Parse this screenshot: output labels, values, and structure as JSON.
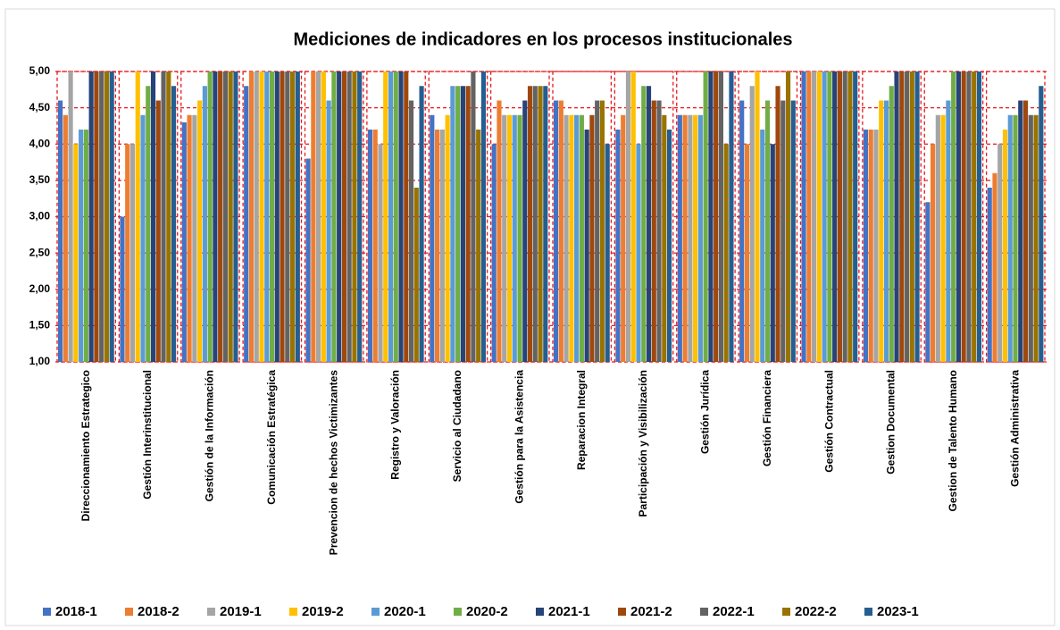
{
  "chart_data": {
    "type": "bar",
    "title": "Mediciones de indicadores en los procesos institucionales",
    "categories": [
      "Direccionamiento  Estrategico",
      "Gestión Interinstitucional",
      "Gestión de la Información",
      "Comunicación Estratégica",
      "Prevencion de hechos Victimizantes",
      "Registro y Valoración",
      "Servicio al Ciudadano",
      "Gestión para la Asistencia",
      "Reparacion Integral",
      "Participación y Visibilización",
      "Gestión Jurídica",
      "Gestión Financiera",
      "Gestión Contractual",
      "Gestion Documental",
      "Gestion de Talento Humano",
      "Gestión Administrativa"
    ],
    "series": [
      {
        "name": "2018-1",
        "color": "#4472c4",
        "values": [
          4.6,
          3.0,
          4.3,
          4.8,
          3.8,
          4.2,
          4.4,
          4.0,
          4.6,
          4.2,
          4.4,
          4.6,
          5,
          4.2,
          3.2,
          3.4
        ]
      },
      {
        "name": "2018-2",
        "color": "#ed7d31",
        "values": [
          4.4,
          4.0,
          4.4,
          5,
          5,
          4.2,
          4.2,
          4.6,
          4.6,
          4.4,
          4.4,
          4.0,
          5,
          4.2,
          4.0,
          3.6
        ]
      },
      {
        "name": "2019-1",
        "color": "#a5a5a5",
        "values": [
          5,
          4.0,
          4.4,
          5,
          5,
          4.0,
          4.2,
          4.4,
          4.4,
          5,
          4.4,
          4.8,
          5,
          4.2,
          4.4,
          4.0
        ]
      },
      {
        "name": "2019-2",
        "color": "#ffc000",
        "values": [
          4.0,
          5,
          4.6,
          5,
          5,
          5,
          4.4,
          4.4,
          4.4,
          5,
          4.4,
          5,
          5,
          4.6,
          4.4,
          4.2
        ]
      },
      {
        "name": "2020-1",
        "color": "#5b9bd5",
        "values": [
          4.2,
          4.4,
          4.8,
          5,
          4.6,
          5,
          4.8,
          4.4,
          4.4,
          4.0,
          4.4,
          4.2,
          5,
          4.6,
          4.6,
          4.4
        ]
      },
      {
        "name": "2020-2",
        "color": "#70ad47",
        "values": [
          4.2,
          4.8,
          5,
          5,
          5,
          5,
          4.8,
          4.4,
          4.4,
          4.8,
          5,
          4.6,
          5,
          4.8,
          5,
          4.4
        ]
      },
      {
        "name": "2021-1",
        "color": "#264478",
        "values": [
          5,
          5,
          5,
          5,
          5,
          5,
          4.8,
          4.6,
          4.2,
          4.8,
          5,
          4.0,
          5,
          5,
          5,
          4.6
        ]
      },
      {
        "name": "2021-2",
        "color": "#9e480e",
        "values": [
          5,
          4.6,
          5,
          5,
          5,
          5,
          4.8,
          4.8,
          4.4,
          4.6,
          5,
          4.8,
          5,
          5,
          5,
          4.6
        ]
      },
      {
        "name": "2022-1",
        "color": "#636363",
        "values": [
          5,
          5,
          5,
          5,
          5,
          4.6,
          5,
          4.8,
          4.6,
          4.6,
          5,
          4.6,
          5,
          5,
          5,
          4.4
        ]
      },
      {
        "name": "2022-2",
        "color": "#997300",
        "values": [
          5,
          5,
          5,
          5,
          5,
          3.4,
          4.2,
          4.8,
          4.6,
          4.4,
          4.0,
          5,
          5,
          5,
          5,
          4.4
        ]
      },
      {
        "name": "2023-1",
        "color": "#255e91",
        "values": [
          5,
          4.8,
          5,
          5,
          5,
          4.8,
          5,
          4.8,
          4.0,
          4.2,
          5,
          4.6,
          5,
          5,
          5,
          4.8
        ]
      }
    ],
    "ylim": [
      1,
      5
    ],
    "yticks": [
      {
        "value": 1,
        "label": "1,00"
      },
      {
        "value": 1.5,
        "label": "1,50"
      },
      {
        "value": 2,
        "label": "2,00"
      },
      {
        "value": 2.5,
        "label": "2,50"
      },
      {
        "value": 3,
        "label": "3,00"
      },
      {
        "value": 3.5,
        "label": "3,50"
      },
      {
        "value": 4,
        "label": "4,00"
      },
      {
        "value": 4.5,
        "label": "4,50"
      },
      {
        "value": 5,
        "label": "5,00"
      }
    ]
  }
}
